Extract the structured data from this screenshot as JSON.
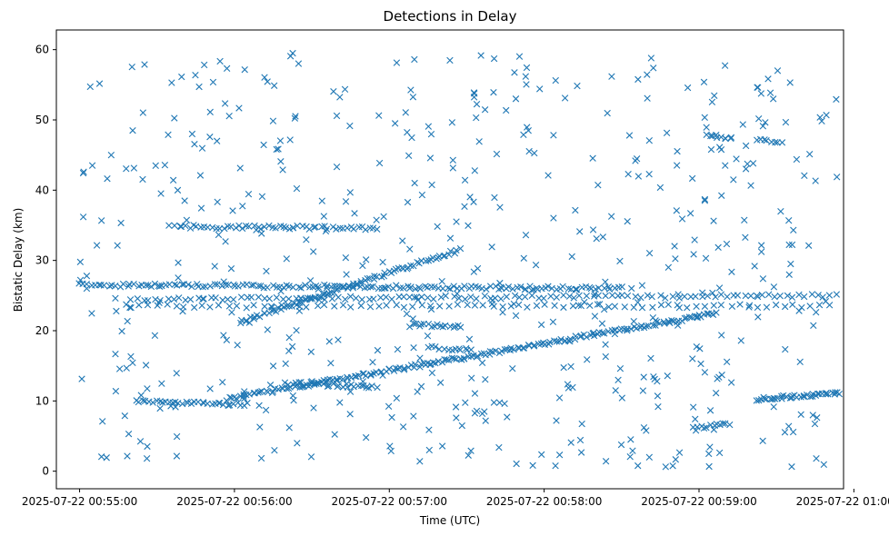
{
  "chart_data": {
    "type": "scatter",
    "title": "Detections in Delay",
    "xlabel": "Time (UTC)",
    "ylabel": "Bistatic Delay (km)",
    "x_units": "seconds since 2025-07-22 00:55:00",
    "xlim": [
      -9,
      296
    ],
    "ylim": [
      -2.5,
      62.8
    ],
    "marker": "x",
    "color": "#1f77b4",
    "x_ticks": [
      {
        "value": 0,
        "label": "2025-07-22 00:55:00"
      },
      {
        "value": 60,
        "label": "2025-07-22 00:56:00"
      },
      {
        "value": 120,
        "label": "2025-07-22 00:57:00"
      },
      {
        "value": 180,
        "label": "2025-07-22 00:58:00"
      },
      {
        "value": 240,
        "label": "2025-07-22 00:59:00"
      },
      {
        "value": 300,
        "label": "2025-07-22 01:00:00"
      }
    ],
    "y_ticks": [
      {
        "value": 0,
        "label": "0"
      },
      {
        "value": 10,
        "label": "10"
      },
      {
        "value": 20,
        "label": "20"
      },
      {
        "value": 30,
        "label": "30"
      },
      {
        "value": 40,
        "label": "40"
      },
      {
        "value": 50,
        "label": "50"
      },
      {
        "value": 60,
        "label": "60"
      }
    ],
    "tracks": [
      {
        "name": "rising-track-low",
        "x_start": 57,
        "x_end": 247,
        "y_start": 10.3,
        "y_end": 22.5,
        "count": 190
      },
      {
        "name": "rising-track-high",
        "x_start": 62,
        "x_end": 147,
        "y_start": 21.2,
        "y_end": 31.5,
        "count": 85
      },
      {
        "name": "band-26",
        "x_start": 0,
        "x_end": 210,
        "y_start": 26.5,
        "y_end": 26.0,
        "count": 150
      },
      {
        "name": "band-24",
        "x_start": 20,
        "x_end": 300,
        "y_start": 24.5,
        "y_end": 25.0,
        "count": 120
      },
      {
        "name": "band-23",
        "x_start": 20,
        "x_end": 290,
        "y_start": 23.5,
        "y_end": 23.5,
        "count": 80
      },
      {
        "name": "band-34.8",
        "x_start": 37,
        "x_end": 115,
        "y_start": 34.8,
        "y_end": 34.6,
        "count": 55
      },
      {
        "name": "band-10",
        "x_start": 22,
        "x_end": 65,
        "y_start": 10.0,
        "y_end": 9.5,
        "count": 35
      },
      {
        "name": "band-12",
        "x_start": 80,
        "x_end": 115,
        "y_start": 12.5,
        "y_end": 12.0,
        "count": 30
      },
      {
        "name": "band-11",
        "x_start": 262,
        "x_end": 300,
        "y_start": 10.3,
        "y_end": 11.2,
        "count": 45
      },
      {
        "name": "band-20.7",
        "x_start": 128,
        "x_end": 148,
        "y_start": 20.8,
        "y_end": 20.5,
        "count": 18
      },
      {
        "name": "band-17.5",
        "x_start": 137,
        "x_end": 152,
        "y_start": 17.6,
        "y_end": 17.2,
        "count": 12
      },
      {
        "name": "band-47.5",
        "x_start": 243,
        "x_end": 253,
        "y_start": 47.8,
        "y_end": 47.4,
        "count": 10
      },
      {
        "name": "band-47",
        "x_start": 262,
        "x_end": 272,
        "y_start": 47.3,
        "y_end": 46.8,
        "count": 8
      },
      {
        "name": "band-6.5",
        "x_start": 238,
        "x_end": 252,
        "y_start": 6.2,
        "y_end": 6.8,
        "count": 12
      }
    ],
    "scatter_noise": {
      "x_range": [
        0,
        300
      ],
      "y_range": [
        0.5,
        59.8
      ],
      "count": 560
    }
  }
}
